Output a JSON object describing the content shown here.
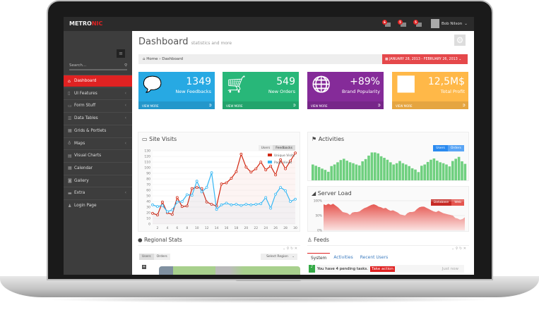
{
  "header": {
    "logo_a": "METRO",
    "logo_b": "NIC",
    "notifications": [
      {
        "count": "6",
        "icon": "warning-icon"
      },
      {
        "count": "5",
        "icon": "envelope-icon"
      },
      {
        "count": "5",
        "icon": "tasks-icon"
      }
    ],
    "user": "Bob Nilson"
  },
  "sidebar": {
    "search_placeholder": "Search...",
    "items": [
      {
        "label": "Dashboard",
        "icon": "home-icon",
        "active": true
      },
      {
        "label": "UI Features",
        "icon": "bookmark-icon",
        "sub": true
      },
      {
        "label": "Form Stuff",
        "icon": "table-icon",
        "sub": true
      },
      {
        "label": "Data Tables",
        "icon": "list-icon",
        "sub": true
      },
      {
        "label": "Grids & Portlets",
        "icon": "grid-icon"
      },
      {
        "label": "Maps",
        "icon": "map-marker-icon",
        "sub": true
      },
      {
        "label": "Visual Charts",
        "icon": "chart-icon"
      },
      {
        "label": "Calendar",
        "icon": "calendar-icon"
      },
      {
        "label": "Gallery",
        "icon": "camera-icon"
      },
      {
        "label": "Extra",
        "icon": "briefcase-icon",
        "sub": true
      },
      {
        "label": "Login Page",
        "icon": "user-icon"
      }
    ]
  },
  "page": {
    "title": "Dashboard",
    "subtitle": "statistics and more",
    "breadcrumb": [
      "Home",
      "Dashboard"
    ],
    "date_range": "JANUARY 28, 2013 - FEBRUARY 26, 2013"
  },
  "tiles": [
    {
      "value": "1349",
      "label": "New Feedbacks",
      "more": "VIEW MORE",
      "color": "#27a9e3",
      "icon": "comments-icon"
    },
    {
      "value": "549",
      "label": "New Orders",
      "more": "VIEW MORE",
      "color": "#28b779",
      "icon": "shopping-cart-icon"
    },
    {
      "value": "+89%",
      "label": "Brand Popularity",
      "more": "VIEW MORE",
      "color": "#852b99",
      "icon": "globe-icon"
    },
    {
      "value": "12,5M$",
      "label": "Total Profit",
      "more": "VIEW MORE",
      "color": "#ffb848",
      "icon": "bar-chart-icon"
    }
  ],
  "site_visits": {
    "title": "Site Visits",
    "buttons": [
      "Users",
      "Feedbacks"
    ]
  },
  "activities": {
    "title": "Activities",
    "buttons": [
      "Users",
      "Orders"
    ]
  },
  "server_load": {
    "title": "Server Load",
    "buttons": [
      "Database",
      "Web"
    ]
  },
  "regional": {
    "title": "Regional Stats",
    "buttons": [
      "Users",
      "Orders"
    ],
    "select": "Select Region"
  },
  "feeds": {
    "title": "Feeds",
    "tabs": [
      "System",
      "Activities",
      "Recent Users"
    ],
    "item": "You have 4 pending tasks.",
    "action": "Take action",
    "time": "Just now"
  },
  "chart_data": [
    {
      "type": "line",
      "title": "Site Visits",
      "x": [
        1,
        2,
        3,
        4,
        5,
        6,
        7,
        8,
        9,
        10,
        11,
        12,
        13,
        14,
        15,
        16,
        17,
        18,
        19,
        20,
        21,
        22,
        23,
        24,
        25,
        26,
        27,
        28,
        29,
        30
      ],
      "xticks": [
        2,
        4,
        6,
        8,
        10,
        12,
        14,
        16,
        18,
        20,
        22,
        24,
        26,
        28,
        30
      ],
      "ylim": [
        0,
        130
      ],
      "yticks": [
        0,
        10,
        20,
        30,
        40,
        50,
        60,
        70,
        80,
        90,
        100,
        110,
        120,
        130
      ],
      "legend": "top-right",
      "grid": true,
      "series": [
        {
          "name": "Unique Visits",
          "color": "#d12610",
          "values": [
            19,
            16,
            39,
            20,
            17,
            47,
            31,
            32,
            63,
            65,
            63,
            39,
            35,
            32,
            71,
            73,
            81,
            93,
            124,
            101,
            92,
            98,
            110,
            96,
            103,
            87,
            114,
            98,
            112,
            126
          ]
        },
        {
          "name": "Page Views",
          "color": "#37b7f3",
          "values": [
            34,
            31,
            33,
            22,
            25,
            39,
            40,
            52,
            51,
            76,
            57,
            65,
            91,
            26,
            34,
            37,
            34,
            35,
            33,
            35,
            34,
            35,
            36,
            47,
            28,
            53,
            65,
            59,
            40,
            44
          ]
        }
      ]
    },
    {
      "type": "bar",
      "title": "Activities",
      "color": "#6fd07f",
      "values": [
        50,
        46,
        42,
        37,
        33,
        27,
        45,
        50,
        57,
        64,
        68,
        62,
        57,
        54,
        50,
        47,
        60,
        67,
        78,
        88,
        88,
        85,
        76,
        71,
        65,
        57,
        50,
        54,
        61,
        54,
        50,
        45,
        38,
        34,
        26,
        46,
        50,
        58,
        65,
        69,
        62,
        57,
        54,
        50,
        44,
        61,
        68,
        74,
        60,
        52
      ]
    },
    {
      "type": "area",
      "title": "Server Load",
      "ylim": [
        0,
        100
      ],
      "yticks": [
        "0%",
        "50%",
        "100%"
      ],
      "color": "#e5554f",
      "values": [
        88,
        85,
        90,
        86,
        90,
        84,
        78,
        70,
        62,
        60,
        58,
        52,
        60,
        62,
        62,
        64,
        70,
        75,
        78,
        82,
        86,
        88,
        85,
        80,
        78,
        74,
        76,
        70,
        66,
        68,
        64,
        60,
        54,
        52,
        50,
        58,
        62,
        62,
        64,
        72,
        78,
        80,
        80,
        76,
        72,
        68,
        64,
        62,
        66,
        62,
        58,
        56,
        54,
        52,
        50,
        42,
        40,
        36,
        38,
        44
      ]
    }
  ]
}
